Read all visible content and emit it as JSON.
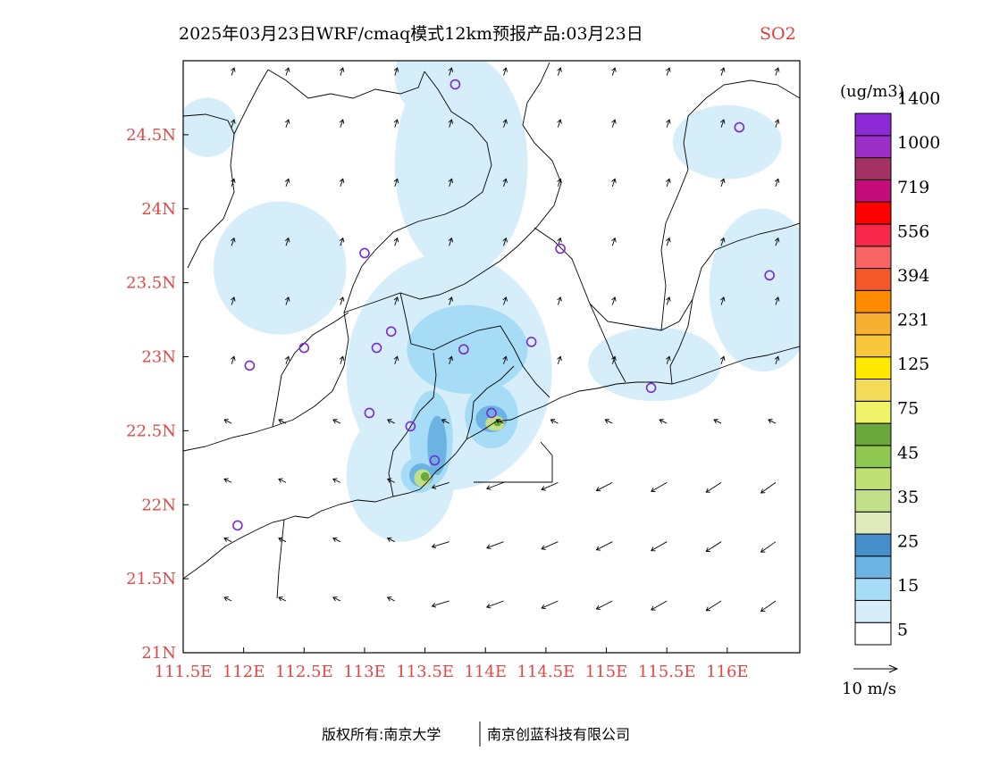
{
  "title": "2025年03月23日WRF/cmaq模式12km预报产品:03月23日",
  "pollutant": "SO2",
  "unit": "(ug/m3)",
  "footer": {
    "left": "版权所有:南京大学",
    "right": "南京创蓝科技有限公司"
  },
  "wind_scale": {
    "label": "10 m/s"
  },
  "map_extent": {
    "lon": [
      111.5,
      116.6
    ],
    "lat": [
      21.0,
      25.0
    ]
  },
  "axes": {
    "x_ticks": [
      {
        "v": 111.5,
        "label": "111.5E"
      },
      {
        "v": 112.0,
        "label": "112E"
      },
      {
        "v": 112.5,
        "label": "112.5E"
      },
      {
        "v": 113.0,
        "label": "113E"
      },
      {
        "v": 113.5,
        "label": "113.5E"
      },
      {
        "v": 114.0,
        "label": "114E"
      },
      {
        "v": 114.5,
        "label": "114.5E"
      },
      {
        "v": 115.0,
        "label": "115E"
      },
      {
        "v": 115.5,
        "label": "115.5E"
      },
      {
        "v": 116.0,
        "label": "116E"
      }
    ],
    "y_ticks": [
      {
        "v": 21.0,
        "label": "21N"
      },
      {
        "v": 21.5,
        "label": "21.5N"
      },
      {
        "v": 22.0,
        "label": "22N"
      },
      {
        "v": 22.5,
        "label": "22.5N"
      },
      {
        "v": 23.0,
        "label": "23N"
      },
      {
        "v": 23.5,
        "label": "23.5N"
      },
      {
        "v": 24.0,
        "label": "24N"
      },
      {
        "v": 24.5,
        "label": "24.5N"
      }
    ]
  },
  "legend": {
    "colors": [
      "#ffffff",
      "#d6eefa",
      "#a7dcf7",
      "#6bb3e3",
      "#468fcb",
      "#dfebbb",
      "#c2df8a",
      "#c0df74",
      "#8fc850",
      "#6aa73c",
      "#eef368",
      "#f5dc58",
      "#ffe900",
      "#f9c73b",
      "#f8b032",
      "#ff8c00",
      "#f4572a",
      "#f86464",
      "#f8284a",
      "#fe0000",
      "#c40d7a",
      "#a53164",
      "#9b2fc8",
      "#8c2bd5"
    ],
    "labels": [
      {
        "at": 1,
        "text": "5"
      },
      {
        "at": 3,
        "text": "15"
      },
      {
        "at": 5,
        "text": "25"
      },
      {
        "at": 7,
        "text": "35"
      },
      {
        "at": 9,
        "text": "45"
      },
      {
        "at": 11,
        "text": "75"
      },
      {
        "at": 13,
        "text": "125"
      },
      {
        "at": 15,
        "text": "231"
      },
      {
        "at": 17,
        "text": "394"
      },
      {
        "at": 19,
        "text": "556"
      },
      {
        "at": 21,
        "text": "719"
      },
      {
        "at": 23,
        "text": "1000"
      },
      {
        "at": 25,
        "text": "1400"
      }
    ]
  },
  "stations": [
    {
      "lon": 113.75,
      "lat": 24.84
    },
    {
      "lon": 116.1,
      "lat": 24.55
    },
    {
      "lon": 113.0,
      "lat": 23.7
    },
    {
      "lon": 114.62,
      "lat": 23.73
    },
    {
      "lon": 116.35,
      "lat": 23.55
    },
    {
      "lon": 113.22,
      "lat": 23.17
    },
    {
      "lon": 113.1,
      "lat": 23.06
    },
    {
      "lon": 113.82,
      "lat": 23.05
    },
    {
      "lon": 114.38,
      "lat": 23.1
    },
    {
      "lon": 112.5,
      "lat": 23.06
    },
    {
      "lon": 112.05,
      "lat": 22.94
    },
    {
      "lon": 115.37,
      "lat": 22.79
    },
    {
      "lon": 113.04,
      "lat": 22.62
    },
    {
      "lon": 113.38,
      "lat": 22.53
    },
    {
      "lon": 114.05,
      "lat": 22.62
    },
    {
      "lon": 113.58,
      "lat": 22.3
    },
    {
      "lon": 111.95,
      "lat": 21.86
    }
  ],
  "concentration_blobs": [
    {
      "lon": 113.8,
      "lat": 24.3,
      "rlon": 0.55,
      "rlat": 0.75,
      "level": 1
    },
    {
      "lon": 113.7,
      "lat": 22.9,
      "rlon": 0.85,
      "rlat": 0.8,
      "level": 1
    },
    {
      "lon": 113.3,
      "lat": 22.2,
      "rlon": 0.45,
      "rlat": 0.45,
      "level": 1
    },
    {
      "lon": 112.3,
      "lat": 23.6,
      "rlon": 0.55,
      "rlat": 0.45,
      "level": 1
    },
    {
      "lon": 116.3,
      "lat": 23.45,
      "rlon": 0.45,
      "rlat": 0.55,
      "level": 1
    },
    {
      "lon": 115.4,
      "lat": 22.95,
      "rlon": 0.55,
      "rlat": 0.25,
      "level": 1
    },
    {
      "lon": 116.0,
      "lat": 24.45,
      "rlon": 0.45,
      "rlat": 0.25,
      "level": 1
    },
    {
      "lon": 113.6,
      "lat": 24.9,
      "rlon": 0.35,
      "rlat": 0.3,
      "level": 1
    },
    {
      "lon": 111.7,
      "lat": 24.55,
      "rlon": 0.25,
      "rlat": 0.2,
      "level": 1
    },
    {
      "lon": 113.85,
      "lat": 23.05,
      "rlon": 0.5,
      "rlat": 0.3,
      "level": 2
    },
    {
      "lon": 113.55,
      "lat": 22.45,
      "rlon": 0.18,
      "rlat": 0.32,
      "level": 2
    },
    {
      "lon": 114.05,
      "lat": 22.6,
      "rlon": 0.22,
      "rlat": 0.22,
      "level": 2
    },
    {
      "lon": 113.45,
      "lat": 22.2,
      "rlon": 0.15,
      "rlat": 0.12,
      "level": 2
    },
    {
      "lon": 113.6,
      "lat": 22.4,
      "rlon": 0.08,
      "rlat": 0.2,
      "level": 3
    },
    {
      "lon": 114.05,
      "lat": 22.58,
      "rlon": 0.13,
      "rlat": 0.09,
      "level": 3
    },
    {
      "lon": 113.47,
      "lat": 22.2,
      "rlon": 0.1,
      "rlat": 0.08,
      "level": 3
    },
    {
      "lon": 113.48,
      "lat": 22.18,
      "rlon": 0.07,
      "rlat": 0.06,
      "level": 6
    },
    {
      "lon": 114.08,
      "lat": 22.55,
      "rlon": 0.08,
      "rlat": 0.05,
      "level": 6
    },
    {
      "lon": 113.5,
      "lat": 22.19,
      "rlon": 0.035,
      "rlat": 0.03,
      "level": 9
    },
    {
      "lon": 114.1,
      "lat": 22.55,
      "rlon": 0.03,
      "rlat": 0.02,
      "level": 9
    }
  ],
  "wind": {
    "lon_grid": [
      111.9,
      112.35,
      112.8,
      113.25,
      113.7,
      114.15,
      114.6,
      115.05,
      115.5,
      115.95,
      116.4
    ],
    "lat_grid": [
      21.35,
      21.75,
      22.15,
      22.55,
      22.95,
      23.35,
      23.75,
      24.15,
      24.55,
      24.9
    ]
  }
}
